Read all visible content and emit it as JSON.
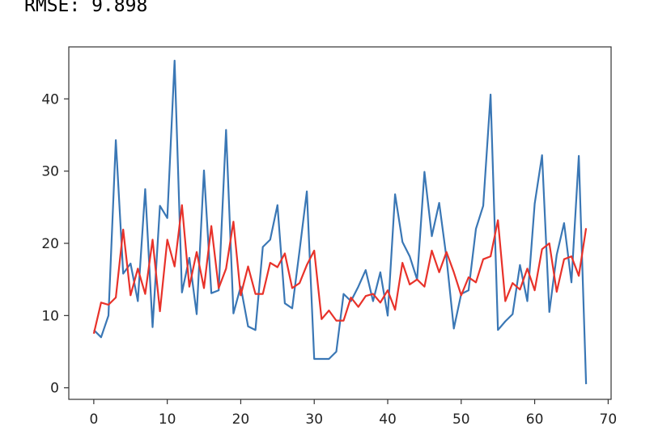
{
  "output_text": "RMSE: 9.898",
  "chart_data": {
    "type": "line",
    "title": "",
    "xlabel": "",
    "ylabel": "",
    "xlim": [
      -3.4,
      70.4
    ],
    "ylim": [
      -1.6,
      47.2
    ],
    "xticks": [
      0,
      10,
      20,
      30,
      40,
      50,
      60,
      70
    ],
    "yticks": [
      0,
      10,
      20,
      30,
      40
    ],
    "grid": false,
    "legend": "none",
    "colors": {
      "actual": "#3a77b5",
      "predicted": "#e8322a",
      "axes": "#333333"
    },
    "x": [
      0,
      1,
      2,
      3,
      4,
      5,
      6,
      7,
      8,
      9,
      10,
      11,
      12,
      13,
      14,
      15,
      16,
      17,
      18,
      19,
      20,
      21,
      22,
      23,
      24,
      25,
      26,
      27,
      28,
      29,
      30,
      31,
      32,
      33,
      34,
      35,
      36,
      37,
      38,
      39,
      40,
      41,
      42,
      43,
      44,
      45,
      46,
      47,
      48,
      49,
      50,
      51,
      52,
      53,
      54,
      55,
      56,
      57,
      58,
      59,
      60,
      61,
      62,
      63,
      64,
      65,
      66,
      67
    ],
    "series": [
      {
        "values": [
          8,
          7,
          10,
          34.3,
          15.8,
          17.2,
          12,
          27.5,
          8.4,
          25.2,
          23.5,
          45.3,
          13.2,
          18,
          10.2,
          30.1,
          13.1,
          13.5,
          35.7,
          10.3,
          14,
          8.5,
          8,
          19.5,
          20.5,
          25.3,
          11.7,
          11,
          19,
          27.2,
          4,
          4,
          4,
          5,
          13,
          12,
          14,
          16.3,
          12,
          16,
          10,
          26.8,
          20.2,
          18.2,
          15,
          29.9,
          21,
          25.6,
          18,
          8.2,
          13,
          13.5,
          22,
          25.2,
          40.6,
          8,
          9.2,
          10.2,
          17,
          12,
          25.5,
          32.2,
          10.5,
          18.4,
          22.8,
          14.6,
          32.1,
          0.5
        ]
      },
      {
        "values": [
          7.5,
          11.8,
          11.5,
          12.5,
          21.9,
          12.8,
          16.5,
          13,
          20.5,
          10.6,
          20.5,
          16.8,
          25.3,
          14,
          18.8,
          13.8,
          22.4,
          13.8,
          16.5,
          23,
          12.8,
          16.8,
          13,
          13,
          17.3,
          16.7,
          18.6,
          13.8,
          14.5,
          17,
          19,
          9.5,
          10.7,
          9.3,
          9.3,
          12.5,
          11.2,
          12.7,
          13,
          11.8,
          13.5,
          10.8,
          17.3,
          14.3,
          15,
          14,
          19,
          16,
          18.8,
          16,
          12.8,
          15.3,
          14.6,
          17.8,
          18.2,
          23.2,
          12,
          14.5,
          13.6,
          16.5,
          13.5,
          19.2,
          20,
          13.3,
          17.8,
          18.2,
          15.5,
          22.1
        ]
      }
    ]
  }
}
